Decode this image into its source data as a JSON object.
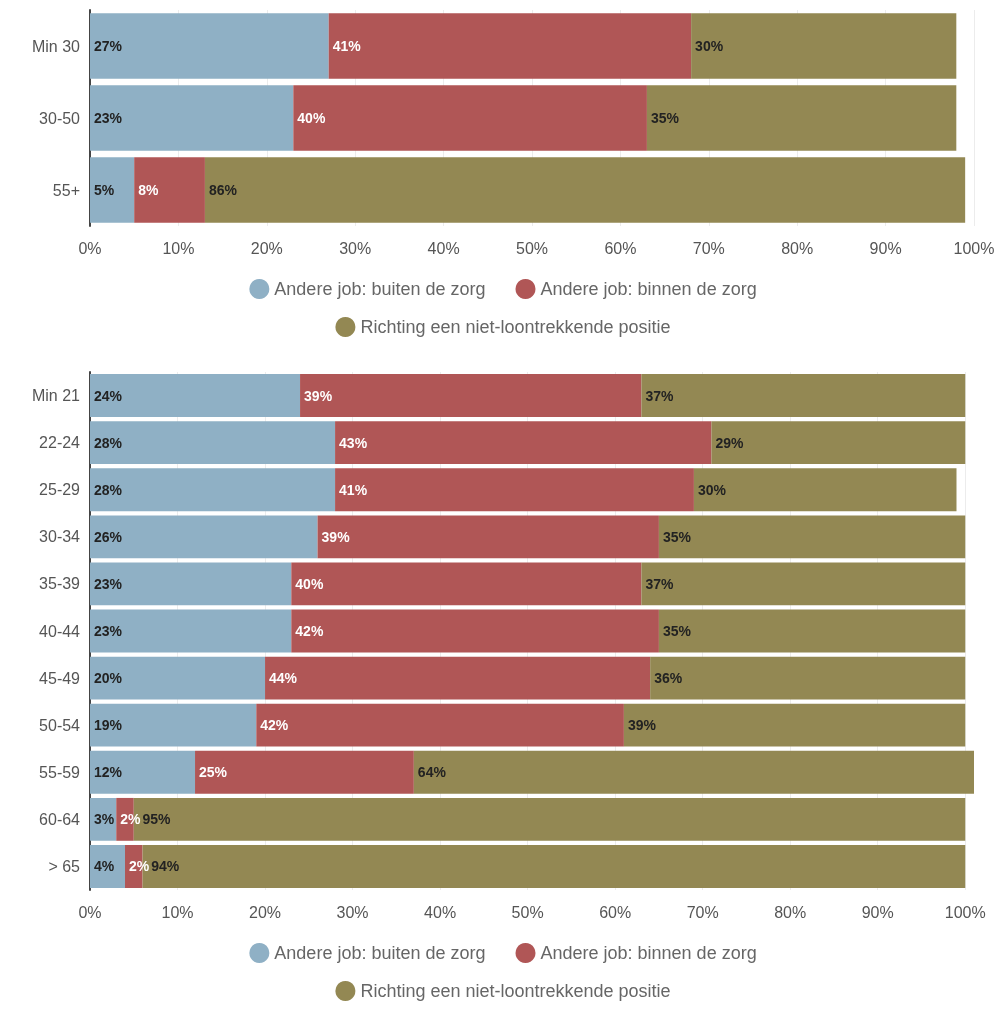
{
  "chart_data": [
    {
      "type": "bar",
      "orientation": "horizontal",
      "stacked": true,
      "categories": [
        "Min 30",
        "30-50",
        "55+"
      ],
      "series": [
        {
          "name": "Andere job: buiten de zorg",
          "color": "#8fb0c5",
          "values": [
            27,
            23,
            5
          ],
          "value_labels": [
            "27%",
            "23%",
            "5%"
          ]
        },
        {
          "name": "Andere job: binnen de zorg",
          "color": "#b05656",
          "values": [
            41,
            40,
            8
          ],
          "value_labels": [
            "41%",
            "40%",
            "8%"
          ]
        },
        {
          "name": "Richting een niet-loontrekkende positie",
          "color": "#938853",
          "values": [
            30,
            35,
            86
          ],
          "value_labels": [
            "30%",
            "35%",
            "86%"
          ]
        }
      ],
      "xlim": [
        0,
        100
      ],
      "xticks": [
        {
          "value": 0,
          "label": "0%"
        },
        {
          "value": 10,
          "label": "10%"
        },
        {
          "value": 20,
          "label": "20%"
        },
        {
          "value": 30,
          "label": "30%"
        },
        {
          "value": 40,
          "label": "40%"
        },
        {
          "value": 50,
          "label": "50%"
        },
        {
          "value": 60,
          "label": "60%"
        },
        {
          "value": 70,
          "label": "70%"
        },
        {
          "value": 80,
          "label": "80%"
        },
        {
          "value": 90,
          "label": "90%"
        },
        {
          "value": 100,
          "label": "100%"
        }
      ],
      "grid": "x",
      "legend": "bottom"
    },
    {
      "type": "bar",
      "orientation": "horizontal",
      "stacked": true,
      "categories": [
        "Min 21",
        "22-24",
        "25-29",
        "30-34",
        "35-39",
        "40-44",
        "45-49",
        "50-54",
        "55-59",
        "60-64",
        "> 65"
      ],
      "series": [
        {
          "name": "Andere job: buiten de zorg",
          "color": "#8fb0c5",
          "values": [
            24,
            28,
            28,
            26,
            23,
            23,
            20,
            19,
            12,
            3,
            4
          ],
          "value_labels": [
            "24%",
            "28%",
            "28%",
            "26%",
            "23%",
            "23%",
            "20%",
            "19%",
            "12%",
            "3%",
            "4%"
          ]
        },
        {
          "name": "Andere job: binnen de zorg",
          "color": "#b05656",
          "values": [
            39,
            43,
            41,
            39,
            40,
            42,
            44,
            42,
            25,
            2,
            2
          ],
          "value_labels": [
            "39%",
            "43%",
            "41%",
            "39%",
            "40%",
            "42%",
            "44%",
            "42%",
            "25%",
            "2%",
            "2%"
          ]
        },
        {
          "name": "Richting een niet-loontrekkende positie",
          "color": "#938853",
          "values": [
            37,
            29,
            30,
            35,
            37,
            35,
            36,
            39,
            64,
            95,
            94
          ],
          "value_labels": [
            "37%",
            "29%",
            "30%",
            "35%",
            "37%",
            "35%",
            "36%",
            "39%",
            "64%",
            "95%",
            "94%"
          ]
        }
      ],
      "xlim": [
        0,
        101
      ],
      "xticks": [
        {
          "value": 0,
          "label": "0%"
        },
        {
          "value": 10,
          "label": "10%"
        },
        {
          "value": 20,
          "label": "20%"
        },
        {
          "value": 30,
          "label": "30%"
        },
        {
          "value": 40,
          "label": "40%"
        },
        {
          "value": 50,
          "label": "50%"
        },
        {
          "value": 60,
          "label": "60%"
        },
        {
          "value": 70,
          "label": "70%"
        },
        {
          "value": 80,
          "label": "80%"
        },
        {
          "value": 90,
          "label": "90%"
        },
        {
          "value": 100,
          "label": "100%"
        }
      ],
      "grid": "x",
      "legend": "bottom"
    }
  ]
}
